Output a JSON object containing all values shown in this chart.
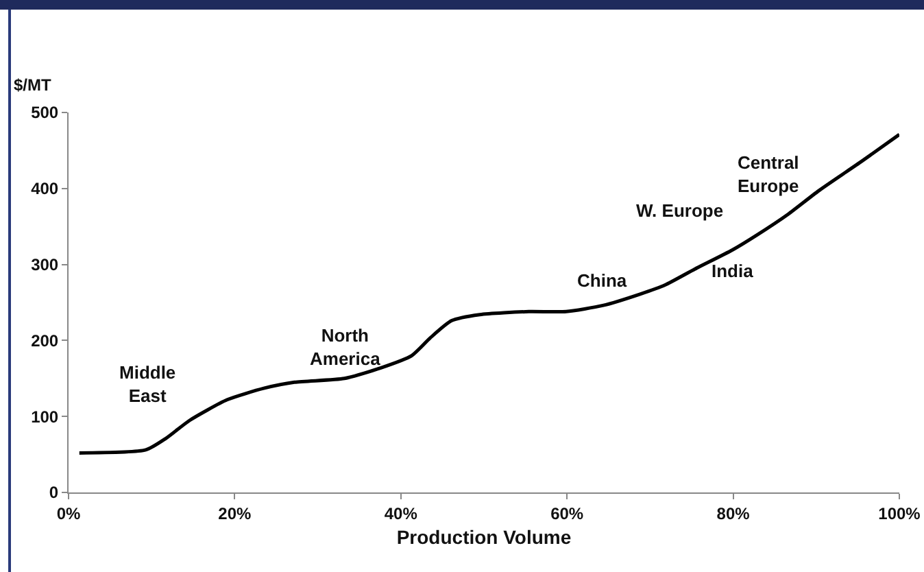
{
  "chart_data": {
    "type": "line",
    "xlabel": "Production Volume",
    "ylabel": "$/MT",
    "x": [
      1.3,
      9.3,
      11.7,
      14.6,
      19.1,
      23.5,
      27.2,
      33.2,
      37.6,
      41.3,
      43.5,
      46.1,
      49.5,
      55.4,
      59.9,
      64.3,
      68.8,
      71.8,
      75.4,
      79.9,
      82.9,
      86.6,
      90.3,
      95.5,
      100
    ],
    "series": [
      {
        "color": "#000000",
        "values": [
          52,
          56,
          71,
          95,
          122,
          137,
          145,
          150,
          164,
          180,
          203,
          226,
          234,
          238,
          238,
          246,
          261,
          273,
          294,
          319,
          339,
          366,
          397,
          436,
          471
        ]
      }
    ],
    "xlim": [
      0,
      100
    ],
    "xticks": [
      {
        "value": 0,
        "label": "0%"
      },
      {
        "value": 20,
        "label": "20%"
      },
      {
        "value": 40,
        "label": "40%"
      },
      {
        "value": 60,
        "label": "60%"
      },
      {
        "value": 80,
        "label": "80%"
      },
      {
        "value": 100,
        "label": "100%"
      }
    ],
    "ylim": [
      0,
      500
    ],
    "yticks": [
      0,
      100,
      200,
      300,
      400,
      500
    ],
    "grid": false,
    "legend": false,
    "marker": "none",
    "line_style": "solid",
    "annotations": [
      "Middle\nEast",
      "North\nAmerica",
      "China",
      "India",
      "W. Europe",
      "Central\nEurope"
    ]
  }
}
